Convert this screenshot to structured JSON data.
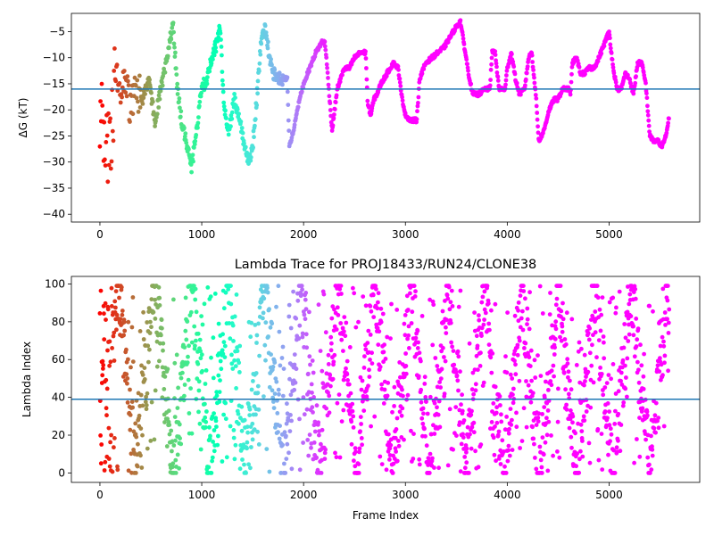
{
  "chart_data": [
    {
      "type": "scatter",
      "title": "",
      "xlabel": "",
      "ylabel": "ΔG (kT)",
      "xlim": [
        -280,
        5890
      ],
      "ylim": [
        -41.5,
        -1.5
      ],
      "xticks": [
        0,
        1000,
        2000,
        3000,
        4000,
        5000
      ],
      "yticks": [
        -40,
        -35,
        -30,
        -25,
        -20,
        -15,
        -10,
        -5
      ],
      "hline": -16,
      "hline_color": "#1f77b4",
      "colormap": "rainbow (red at frame 0 → violet at later frames)",
      "grid": false,
      "trace_nodes": [
        [
          0,
          -20
        ],
        [
          40,
          -24
        ],
        [
          80,
          -28
        ],
        [
          120,
          -22
        ],
        [
          160,
          -12
        ],
        [
          200,
          -18
        ],
        [
          240,
          -14
        ],
        [
          300,
          -20
        ],
        [
          360,
          -16
        ],
        [
          420,
          -18
        ],
        [
          480,
          -14
        ],
        [
          540,
          -22
        ],
        [
          580,
          -18
        ],
        [
          640,
          -12
        ],
        [
          690,
          -6
        ],
        [
          720,
          -4
        ],
        [
          760,
          -16
        ],
        [
          800,
          -22
        ],
        [
          850,
          -26
        ],
        [
          900,
          -31
        ],
        [
          950,
          -24
        ],
        [
          1000,
          -16
        ],
        [
          1050,
          -14
        ],
        [
          1100,
          -10
        ],
        [
          1150,
          -7
        ],
        [
          1180,
          -4
        ],
        [
          1220,
          -20
        ],
        [
          1270,
          -24
        ],
        [
          1320,
          -18
        ],
        [
          1380,
          -22
        ],
        [
          1420,
          -27
        ],
        [
          1460,
          -30
        ],
        [
          1500,
          -27
        ],
        [
          1540,
          -18
        ],
        [
          1580,
          -8
        ],
        [
          1620,
          -4
        ],
        [
          1660,
          -9
        ],
        [
          1700,
          -13
        ],
        [
          1760,
          -14
        ],
        [
          1840,
          -14
        ],
        [
          1860,
          -27
        ],
        [
          1900,
          -24
        ],
        [
          1960,
          -18
        ],
        [
          2000,
          -15
        ],
        [
          2060,
          -12
        ],
        [
          2120,
          -9
        ],
        [
          2180,
          -7
        ],
        [
          2210,
          -7
        ],
        [
          2240,
          -14
        ],
        [
          2280,
          -24
        ],
        [
          2330,
          -16
        ],
        [
          2400,
          -12
        ],
        [
          2450,
          -12
        ],
        [
          2500,
          -10
        ],
        [
          2560,
          -9
        ],
        [
          2610,
          -9
        ],
        [
          2630,
          -19
        ],
        [
          2660,
          -21
        ],
        [
          2690,
          -18
        ],
        [
          2720,
          -17
        ],
        [
          2760,
          -15
        ],
        [
          2820,
          -13
        ],
        [
          2880,
          -11
        ],
        [
          2930,
          -12
        ],
        [
          2960,
          -17
        ],
        [
          3000,
          -21
        ],
        [
          3050,
          -22
        ],
        [
          3110,
          -22
        ],
        [
          3140,
          -14
        ],
        [
          3200,
          -11
        ],
        [
          3260,
          -10
        ],
        [
          3320,
          -9
        ],
        [
          3380,
          -8
        ],
        [
          3440,
          -6
        ],
        [
          3500,
          -4
        ],
        [
          3540,
          -3
        ],
        [
          3580,
          -8
        ],
        [
          3620,
          -13
        ],
        [
          3660,
          -17
        ],
        [
          3720,
          -17
        ],
        [
          3780,
          -16
        ],
        [
          3830,
          -16
        ],
        [
          3850,
          -9
        ],
        [
          3880,
          -9
        ],
        [
          3920,
          -16
        ],
        [
          3980,
          -16
        ],
        [
          4000,
          -12
        ],
        [
          4040,
          -9
        ],
        [
          4080,
          -14
        ],
        [
          4120,
          -17
        ],
        [
          4170,
          -16
        ],
        [
          4210,
          -10
        ],
        [
          4240,
          -9
        ],
        [
          4280,
          -17
        ],
        [
          4310,
          -26
        ],
        [
          4360,
          -24
        ],
        [
          4410,
          -20
        ],
        [
          4460,
          -18
        ],
        [
          4500,
          -18
        ],
        [
          4540,
          -16
        ],
        [
          4600,
          -16
        ],
        [
          4620,
          -17
        ],
        [
          4640,
          -11
        ],
        [
          4680,
          -10
        ],
        [
          4720,
          -13
        ],
        [
          4760,
          -13
        ],
        [
          4800,
          -12
        ],
        [
          4840,
          -12
        ],
        [
          4880,
          -11
        ],
        [
          4920,
          -9
        ],
        [
          4960,
          -7
        ],
        [
          5000,
          -5
        ],
        [
          5040,
          -12
        ],
        [
          5080,
          -16
        ],
        [
          5120,
          -16
        ],
        [
          5160,
          -13
        ],
        [
          5200,
          -14
        ],
        [
          5240,
          -17
        ],
        [
          5280,
          -11
        ],
        [
          5320,
          -11
        ],
        [
          5360,
          -15
        ],
        [
          5400,
          -25
        ],
        [
          5440,
          -26
        ],
        [
          5480,
          -26
        ],
        [
          5520,
          -27
        ],
        [
          5560,
          -25
        ],
        [
          5590,
          -21
        ]
      ]
    },
    {
      "type": "scatter",
      "title": "Lambda Trace for PROJ18433/RUN24/CLONE38",
      "xlabel": "Frame Index",
      "ylabel": "Lambda Index",
      "xlim": [
        -280,
        5890
      ],
      "ylim": [
        -5,
        104
      ],
      "xticks": [
        0,
        1000,
        2000,
        3000,
        4000,
        5000
      ],
      "yticks": [
        0,
        20,
        40,
        60,
        80,
        100
      ],
      "hline": 39,
      "hline_color": "#1f77b4",
      "colormap": "rainbow (red at frame 0 → violet at later frames)",
      "grid": false,
      "frame_range": [
        0,
        5600
      ],
      "lambda_range": [
        0,
        99
      ]
    }
  ]
}
